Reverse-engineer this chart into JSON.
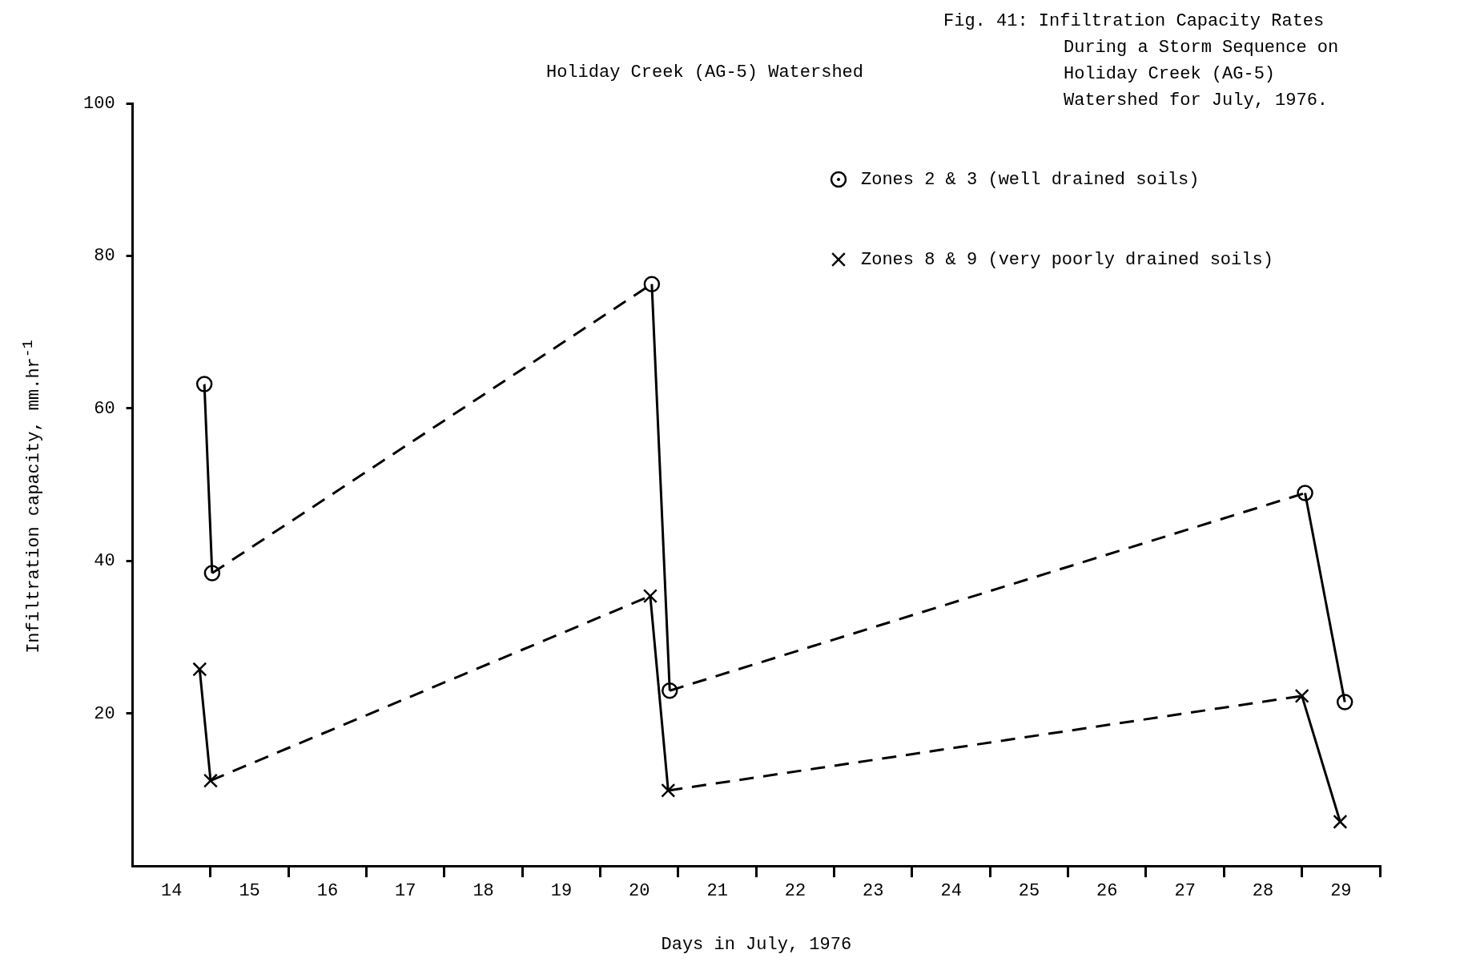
{
  "chart_data": {
    "type": "line",
    "title": "Holiday Creek (AG-5) Watershed",
    "xlabel": "Days in July, 1976",
    "ylabel": "Infiltration capacity, mm.hr$^{-1}$",
    "annotations": [
      "Fig. 41: Infiltration Capacity Rates During a Storm Sequence on Holiday Creek (AG-5) Watershed for July, 1976."
    ],
    "xlim": [
      14,
      30
    ],
    "xticks": [
      {
        "value": 14.5,
        "label": "14"
      },
      {
        "value": 15,
        "label": null
      },
      {
        "value": 15.5,
        "label": "15"
      },
      {
        "value": 16,
        "label": null
      },
      {
        "value": 16.5,
        "label": "16"
      },
      {
        "value": 17,
        "label": null
      },
      {
        "value": 17.5,
        "label": "17"
      },
      {
        "value": 18,
        "label": null
      },
      {
        "value": 18.5,
        "label": "18"
      },
      {
        "value": 19,
        "label": null
      },
      {
        "value": 19.5,
        "label": "19"
      },
      {
        "value": 20,
        "label": null
      },
      {
        "value": 20.5,
        "label": "20"
      },
      {
        "value": 21,
        "label": null
      },
      {
        "value": 21.5,
        "label": "21"
      },
      {
        "value": 22,
        "label": null
      },
      {
        "value": 22.5,
        "label": "22"
      },
      {
        "value": 23,
        "label": null
      },
      {
        "value": 23.5,
        "label": "23"
      },
      {
        "value": 24,
        "label": null
      },
      {
        "value": 24.5,
        "label": "24"
      },
      {
        "value": 25,
        "label": null
      },
      {
        "value": 25.5,
        "label": "25"
      },
      {
        "value": 26,
        "label": null
      },
      {
        "value": 26.5,
        "label": "26"
      },
      {
        "value": 27,
        "label": null
      },
      {
        "value": 27.5,
        "label": "27"
      },
      {
        "value": 28,
        "label": null
      },
      {
        "value": 28.5,
        "label": "28"
      },
      {
        "value": 29,
        "label": null
      },
      {
        "value": 29.5,
        "label": "29"
      },
      {
        "value": 30,
        "label": null
      }
    ],
    "ylim": [
      0,
      100
    ],
    "yticks": [
      20,
      40,
      60,
      80,
      100
    ],
    "grid": false,
    "legend": "top right",
    "series": [
      {
        "name": "Zones 2 & 3 (well drained soils)",
        "type": "scatter",
        "marker": "circle",
        "color": "#000000",
        "x": [
          14.92,
          15.02,
          20.66,
          20.89,
          29.04,
          29.55
        ],
        "values": [
          63.2,
          38.4,
          76.3,
          23.0,
          48.9,
          21.5
        ]
      },
      {
        "name": "Zones 8 & 9 (very poorly drained soils)",
        "type": "scatter",
        "marker": "cross",
        "color": "#000000",
        "x": [
          14.86,
          15.0,
          20.64,
          20.87,
          29.0,
          29.49
        ],
        "values": [
          25.8,
          11.2,
          35.4,
          9.9,
          22.3,
          5.8
        ]
      },
      {
        "type": "line",
        "marker": "none",
        "line_style": "solid",
        "color": "#000000",
        "x": [
          14.92,
          15.02
        ],
        "values": [
          63.2,
          38.4
        ]
      },
      {
        "type": "line",
        "marker": "none",
        "line_style": "dashed",
        "color": "#000000",
        "x": [
          15.02,
          20.66
        ],
        "values": [
          38.4,
          76.3
        ]
      },
      {
        "type": "line",
        "marker": "none",
        "line_style": "solid",
        "color": "#000000",
        "x": [
          20.66,
          20.89
        ],
        "values": [
          76.3,
          23.0
        ]
      },
      {
        "type": "line",
        "marker": "none",
        "line_style": "dashed",
        "color": "#000000",
        "x": [
          20.89,
          29.04
        ],
        "values": [
          23.0,
          48.9
        ]
      },
      {
        "type": "line",
        "marker": "none",
        "line_style": "solid",
        "color": "#000000",
        "x": [
          29.04,
          29.55
        ],
        "values": [
          48.9,
          21.5
        ]
      },
      {
        "type": "line",
        "marker": "none",
        "line_style": "solid",
        "color": "#000000",
        "x": [
          14.86,
          15.0
        ],
        "values": [
          25.8,
          11.2
        ]
      },
      {
        "type": "line",
        "marker": "none",
        "line_style": "dashed",
        "color": "#000000",
        "x": [
          15.0,
          20.64
        ],
        "values": [
          11.2,
          35.4
        ]
      },
      {
        "type": "line",
        "marker": "none",
        "line_style": "solid",
        "color": "#000000",
        "x": [
          20.64,
          20.87
        ],
        "values": [
          35.4,
          9.9
        ]
      },
      {
        "type": "line",
        "marker": "none",
        "line_style": "dashed",
        "color": "#000000",
        "x": [
          20.87,
          29.0
        ],
        "values": [
          9.9,
          22.3
        ]
      },
      {
        "type": "line",
        "marker": "none",
        "line_style": "solid",
        "color": "#000000",
        "x": [
          29.0,
          29.49
        ],
        "values": [
          22.3,
          5.8
        ]
      }
    ]
  }
}
